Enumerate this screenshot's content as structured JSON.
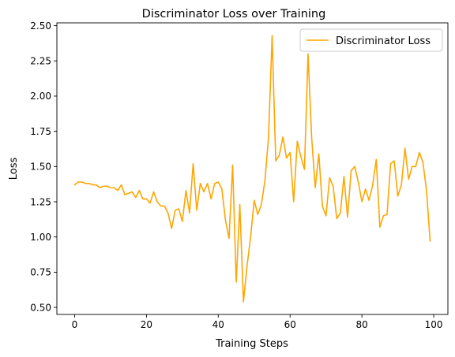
{
  "chart_data": {
    "type": "line",
    "title": "Discriminator Loss over Training",
    "xlabel": "Training Steps",
    "ylabel": "Loss",
    "xlim": [
      -4.95,
      103.95
    ],
    "ylim": [
      0.45,
      2.52
    ],
    "xticks": [
      0,
      20,
      40,
      60,
      80,
      100
    ],
    "yticks": [
      0.5,
      0.75,
      1.0,
      1.25,
      1.5,
      1.75,
      2.0,
      2.25,
      2.5
    ],
    "ytick_labels": [
      "0.50",
      "0.75",
      "1.00",
      "1.25",
      "1.50",
      "1.75",
      "2.00",
      "2.25",
      "2.50"
    ],
    "grid": false,
    "legend_position": "top-right",
    "series": [
      {
        "name": "Discriminator Loss",
        "color": "#FFA500",
        "x": [
          0,
          1,
          2,
          3,
          4,
          5,
          6,
          7,
          8,
          9,
          10,
          11,
          12,
          13,
          14,
          15,
          16,
          17,
          18,
          19,
          20,
          21,
          22,
          23,
          24,
          25,
          26,
          27,
          28,
          29,
          30,
          31,
          32,
          33,
          34,
          35,
          36,
          37,
          38,
          39,
          40,
          41,
          42,
          43,
          44,
          45,
          46,
          47,
          48,
          49,
          50,
          51,
          52,
          53,
          54,
          55,
          56,
          57,
          58,
          59,
          60,
          61,
          62,
          63,
          64,
          65,
          66,
          67,
          68,
          69,
          70,
          71,
          72,
          73,
          74,
          75,
          76,
          77,
          78,
          79,
          80,
          81,
          82,
          83,
          84,
          85,
          86,
          87,
          88,
          89,
          90,
          91,
          92,
          93,
          94,
          95,
          96,
          97,
          98,
          99
        ],
        "values": [
          1.37,
          1.39,
          1.39,
          1.38,
          1.38,
          1.37,
          1.37,
          1.35,
          1.36,
          1.36,
          1.35,
          1.35,
          1.33,
          1.37,
          1.3,
          1.31,
          1.32,
          1.28,
          1.33,
          1.27,
          1.27,
          1.24,
          1.32,
          1.25,
          1.22,
          1.22,
          1.17,
          1.06,
          1.19,
          1.2,
          1.11,
          1.33,
          1.17,
          1.52,
          1.19,
          1.38,
          1.32,
          1.38,
          1.27,
          1.38,
          1.39,
          1.34,
          1.12,
          0.99,
          1.51,
          0.68,
          1.23,
          0.54,
          0.79,
          1.0,
          1.26,
          1.16,
          1.23,
          1.4,
          1.71,
          2.43,
          1.54,
          1.58,
          1.71,
          1.56,
          1.6,
          1.25,
          1.68,
          1.57,
          1.48,
          2.3,
          1.71,
          1.35,
          1.59,
          1.22,
          1.15,
          1.42,
          1.36,
          1.13,
          1.17,
          1.43,
          1.14,
          1.47,
          1.5,
          1.39,
          1.25,
          1.34,
          1.26,
          1.37,
          1.55,
          1.07,
          1.15,
          1.16,
          1.52,
          1.54,
          1.29,
          1.37,
          1.63,
          1.41,
          1.5,
          1.5,
          1.6,
          1.53,
          1.33,
          0.97
        ]
      }
    ]
  }
}
